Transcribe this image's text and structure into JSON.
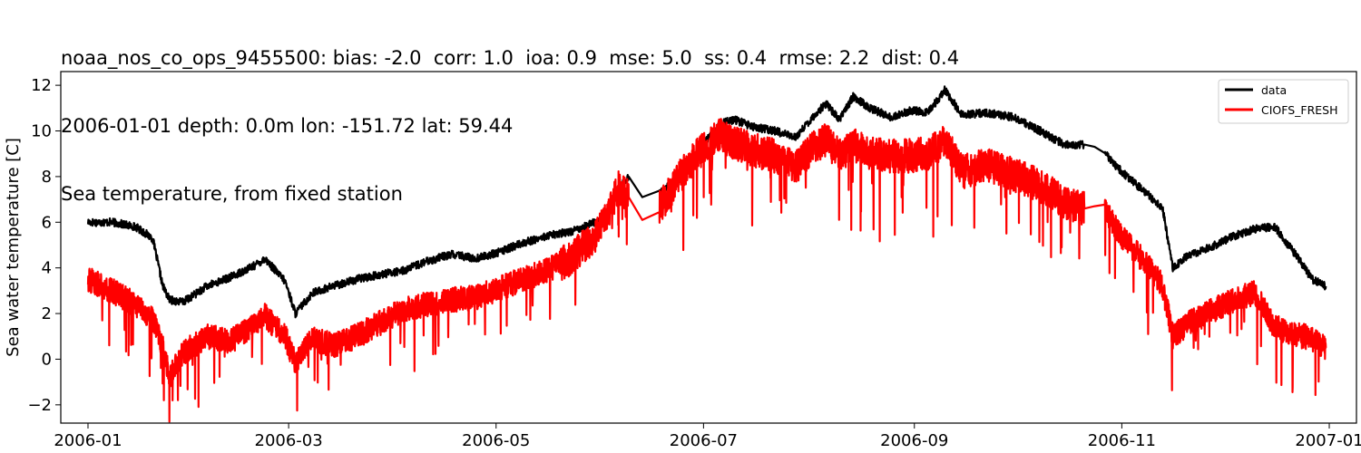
{
  "chart_data": {
    "type": "line",
    "title_lines": [
      "noaa_nos_co_ops_9455500: bias: -2.0  corr: 1.0  ioa: 0.9  mse: 5.0  ss: 0.4  rmse: 2.2  dist: 0.4",
      "2006-01-01 depth: 0.0m lon: -151.72 lat: 59.44",
      "Sea temperature, from fixed station"
    ],
    "xlabel": "",
    "ylabel": "Sea water temperature [C]",
    "x_ticks": [
      "2006-01",
      "2006-03",
      "2006-05",
      "2006-07",
      "2006-09",
      "2006-11",
      "2007-01"
    ],
    "y_ticks": [
      "−2",
      "0",
      "2",
      "4",
      "6",
      "8",
      "10",
      "12"
    ],
    "xlim": [
      "2005-12-24",
      "2007-01-09"
    ],
    "ylim": [
      -2.8,
      12.6
    ],
    "legend_position": "upper right",
    "series": [
      {
        "name": "data",
        "color": "#000000",
        "x": [
          "2006-01-01",
          "2006-01-08",
          "2006-01-15",
          "2006-01-20",
          "2006-01-23",
          "2006-01-25",
          "2006-01-29",
          "2006-02-05",
          "2006-02-12",
          "2006-02-19",
          "2006-02-22",
          "2006-02-28",
          "2006-03-03",
          "2006-03-08",
          "2006-03-14",
          "2006-03-21",
          "2006-03-28",
          "2006-04-04",
          "2006-04-11",
          "2006-04-18",
          "2006-04-25",
          "2006-05-02",
          "2006-05-09",
          "2006-05-16",
          "2006-05-23",
          "2006-05-30",
          "2006-06-03",
          "2006-06-06",
          "2006-06-09",
          "2006-06-13",
          "2006-06-18",
          "2006-06-24",
          "2006-07-01",
          "2006-07-06",
          "2006-07-10",
          "2006-07-15",
          "2006-07-22",
          "2006-07-28",
          "2006-08-02",
          "2006-08-06",
          "2006-08-10",
          "2006-08-14",
          "2006-08-19",
          "2006-08-25",
          "2006-08-31",
          "2006-09-05",
          "2006-09-10",
          "2006-09-15",
          "2006-09-22",
          "2006-09-30",
          "2006-10-08",
          "2006-10-15",
          "2006-10-21",
          "2006-10-24",
          "2006-10-27",
          "2006-11-01",
          "2006-11-08",
          "2006-11-13",
          "2006-11-16",
          "2006-11-20",
          "2006-11-27",
          "2006-12-04",
          "2006-12-10",
          "2006-12-16",
          "2006-12-22",
          "2006-12-27",
          "2006-12-31"
        ],
        "y": [
          6.0,
          6.0,
          5.8,
          5.3,
          3.2,
          2.6,
          2.5,
          3.2,
          3.6,
          4.1,
          4.4,
          3.4,
          2.0,
          2.9,
          3.2,
          3.5,
          3.7,
          3.9,
          4.3,
          4.6,
          4.4,
          4.7,
          5.1,
          5.4,
          5.6,
          6.0,
          6.3,
          7.5,
          8.0,
          7.1,
          7.3,
          7.9,
          9.5,
          10.3,
          10.5,
          10.2,
          10.0,
          9.7,
          10.6,
          11.2,
          10.5,
          11.5,
          11.0,
          10.6,
          10.9,
          10.8,
          11.8,
          10.7,
          10.8,
          10.6,
          10.0,
          9.4,
          9.4,
          9.3,
          9.0,
          8.2,
          7.3,
          6.6,
          4.0,
          4.5,
          4.9,
          5.4,
          5.7,
          5.8,
          4.6,
          3.5,
          3.2
        ]
      },
      {
        "name": "CIOFS_FRESH",
        "color": "#ff0000",
        "x": [
          "2006-01-01",
          "2006-01-08",
          "2006-01-15",
          "2006-01-20",
          "2006-01-23",
          "2006-01-25",
          "2006-01-29",
          "2006-02-05",
          "2006-02-12",
          "2006-02-19",
          "2006-02-22",
          "2006-02-28",
          "2006-03-03",
          "2006-03-08",
          "2006-03-14",
          "2006-03-21",
          "2006-03-28",
          "2006-04-04",
          "2006-04-11",
          "2006-04-18",
          "2006-04-25",
          "2006-05-02",
          "2006-05-09",
          "2006-05-16",
          "2006-05-23",
          "2006-05-30",
          "2006-06-03",
          "2006-06-06",
          "2006-06-09",
          "2006-06-13",
          "2006-06-18",
          "2006-06-24",
          "2006-07-01",
          "2006-07-06",
          "2006-07-10",
          "2006-07-15",
          "2006-07-22",
          "2006-07-28",
          "2006-08-02",
          "2006-08-06",
          "2006-08-10",
          "2006-08-14",
          "2006-08-19",
          "2006-08-25",
          "2006-08-31",
          "2006-09-05",
          "2006-09-10",
          "2006-09-15",
          "2006-09-22",
          "2006-09-30",
          "2006-10-08",
          "2006-10-15",
          "2006-10-21",
          "2006-10-24",
          "2006-10-27",
          "2006-11-01",
          "2006-11-08",
          "2006-11-13",
          "2006-11-16",
          "2006-11-20",
          "2006-11-27",
          "2006-12-04",
          "2006-12-10",
          "2006-12-16",
          "2006-12-22",
          "2006-12-27",
          "2006-12-31"
        ],
        "y": [
          3.5,
          3.0,
          2.4,
          1.8,
          0.5,
          -0.8,
          0.3,
          1.0,
          0.8,
          1.5,
          1.9,
          1.0,
          -0.2,
          0.9,
          0.6,
          1.0,
          1.6,
          2.2,
          2.4,
          2.6,
          2.7,
          3.1,
          3.5,
          3.9,
          4.4,
          5.4,
          6.3,
          7.5,
          7.1,
          6.1,
          6.6,
          8.0,
          9.3,
          9.8,
          9.5,
          9.2,
          8.9,
          8.4,
          9.2,
          9.6,
          8.9,
          9.4,
          9.0,
          8.9,
          8.9,
          9.0,
          9.6,
          8.2,
          8.5,
          8.1,
          7.6,
          6.9,
          6.6,
          6.7,
          6.5,
          5.4,
          4.2,
          3.2,
          1.0,
          1.5,
          2.1,
          2.6,
          2.9,
          1.4,
          1.1,
          0.9,
          0.5
        ]
      }
    ]
  }
}
